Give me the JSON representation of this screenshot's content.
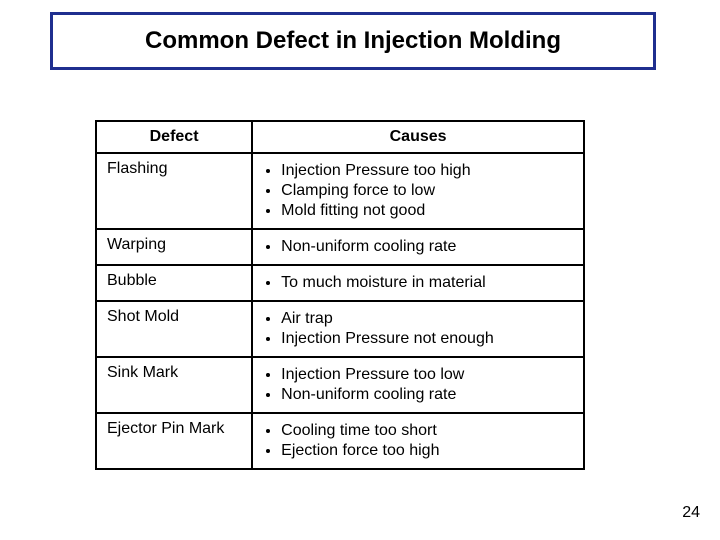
{
  "title": "Common Defect in Injection Molding",
  "title_border_color": "#1f2f8f",
  "table": {
    "columns": [
      "Defect",
      "Causes"
    ],
    "rows": [
      {
        "defect": "Flashing",
        "causes": [
          "Injection Pressure too high",
          "Clamping force to low",
          "Mold fitting not good"
        ]
      },
      {
        "defect": "Warping",
        "causes": [
          "Non-uniform cooling rate"
        ]
      },
      {
        "defect": "Bubble",
        "causes": [
          "To much moisture in material"
        ]
      },
      {
        "defect": "Shot Mold",
        "causes": [
          "Air trap",
          "Injection Pressure not enough"
        ]
      },
      {
        "defect": "Sink Mark",
        "causes": [
          "Injection Pressure too low",
          "Non-uniform cooling rate"
        ]
      },
      {
        "defect": "Ejector Pin Mark",
        "causes": [
          "Cooling time too short",
          "Ejection force too high"
        ]
      }
    ]
  },
  "page_number": "24"
}
